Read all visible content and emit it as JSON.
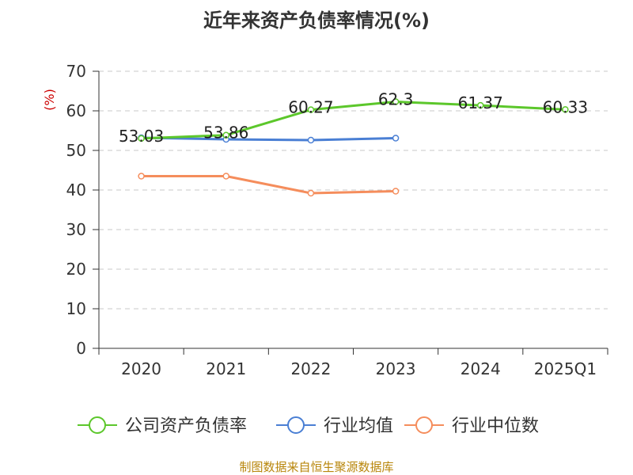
{
  "chart_data": {
    "type": "line",
    "title": "近年来资产负债率情况(%)",
    "ylabel": "(%)",
    "xlabel": "",
    "categories": [
      "2020",
      "2021",
      "2022",
      "2023",
      "2024",
      "2025Q1"
    ],
    "ylim": [
      0,
      70
    ],
    "yticks": [
      0,
      10,
      20,
      30,
      40,
      50,
      60,
      70
    ],
    "grid": true,
    "legend_position": "bottom",
    "series": [
      {
        "name": "公司资产负债率",
        "color": "#5cc72b",
        "values": [
          53.03,
          53.86,
          60.27,
          62.3,
          61.37,
          60.33
        ],
        "labels": [
          "53.03",
          "53.86",
          "60.27",
          "62.3",
          "61.37",
          "60.33"
        ]
      },
      {
        "name": "行业均值",
        "color": "#4a7fd4",
        "values": [
          53.2,
          52.8,
          52.6,
          53.1,
          null,
          null
        ]
      },
      {
        "name": "行业中位数",
        "color": "#f58d5c",
        "values": [
          43.5,
          43.5,
          39.2,
          39.7,
          null,
          null
        ]
      }
    ],
    "source": "制图数据来自恒生聚源数据库"
  }
}
